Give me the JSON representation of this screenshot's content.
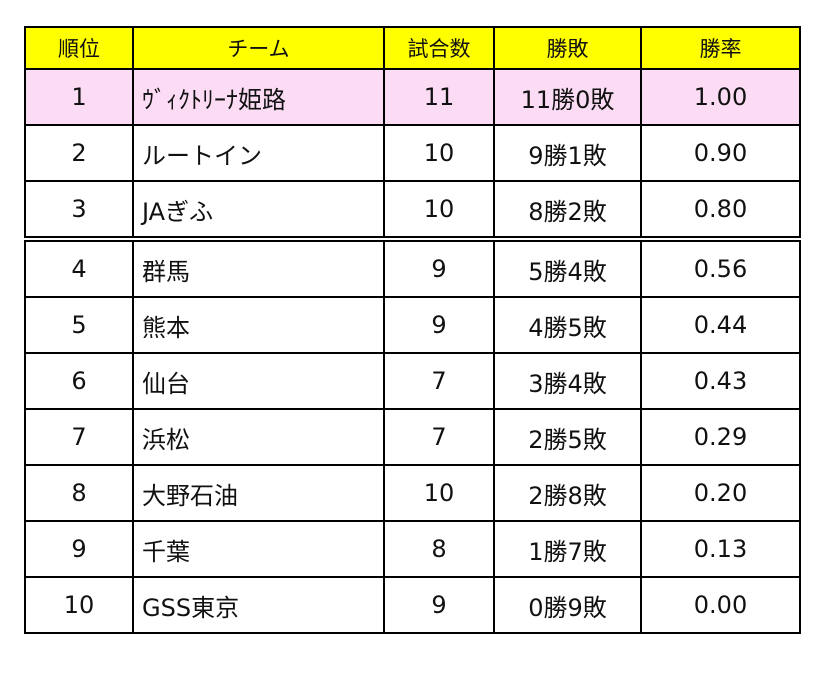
{
  "colors": {
    "header_bg": "#ffff00",
    "leader_row_bg": "#fbdcf4",
    "border": "#000000"
  },
  "headers": {
    "rank": "順位",
    "team": "チーム",
    "games": "試合数",
    "win_loss": "勝敗",
    "win_pct": "勝率"
  },
  "rows": [
    {
      "rank": "1",
      "team": "ｳﾞｨｸﾄﾘｰﾅ姫路",
      "games": "11",
      "win_loss": "11勝0敗",
      "win_pct": "1.00"
    },
    {
      "rank": "2",
      "team": "ルートイン",
      "games": "10",
      "win_loss": "9勝1敗",
      "win_pct": "0.90"
    },
    {
      "rank": "3",
      "team": "JAぎふ",
      "games": "10",
      "win_loss": "8勝2敗",
      "win_pct": "0.80"
    },
    {
      "rank": "4",
      "team": "群馬",
      "games": "9",
      "win_loss": "5勝4敗",
      "win_pct": "0.56"
    },
    {
      "rank": "5",
      "team": "熊本",
      "games": "9",
      "win_loss": "4勝5敗",
      "win_pct": "0.44"
    },
    {
      "rank": "6",
      "team": "仙台",
      "games": "7",
      "win_loss": "3勝4敗",
      "win_pct": "0.43"
    },
    {
      "rank": "7",
      "team": "浜松",
      "games": "7",
      "win_loss": "2勝5敗",
      "win_pct": "0.29"
    },
    {
      "rank": "8",
      "team": "大野石油",
      "games": "10",
      "win_loss": "2勝8敗",
      "win_pct": "0.20"
    },
    {
      "rank": "9",
      "team": "千葉",
      "games": "8",
      "win_loss": "1勝7敗",
      "win_pct": "0.13"
    },
    {
      "rank": "10",
      "team": "GSS東京",
      "games": "9",
      "win_loss": "0勝9敗",
      "win_pct": "0.00"
    }
  ]
}
